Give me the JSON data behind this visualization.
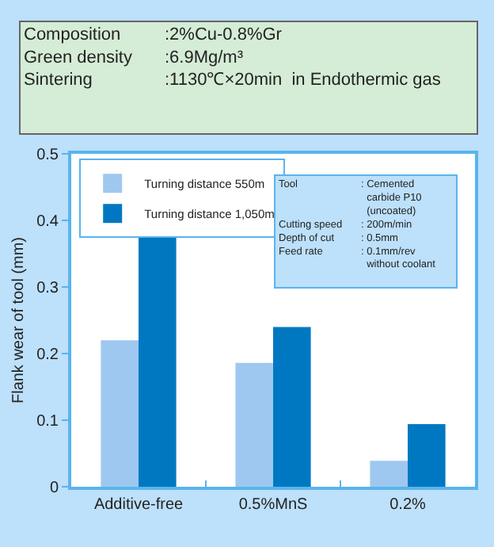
{
  "chart_data": {
    "type": "bar",
    "ylabel": "Flank wear of tool (mm)",
    "categories": [
      "Additive-free",
      "0.5%MnS",
      "0.2%"
    ],
    "series": [
      {
        "name": "Turning distance 550m",
        "color": "#9ec8f0",
        "values": [
          0.22,
          0.186,
          0.039
        ]
      },
      {
        "name": "Turning distance 1,050m",
        "color": "#0078c1",
        "values": [
          0.38,
          0.24,
          0.094
        ]
      }
    ],
    "ylim": [
      0,
      0.5
    ],
    "yticks": [
      0,
      0.1,
      0.2,
      0.3,
      0.4,
      0.5
    ],
    "legend": "top left",
    "annotations": [
      "Composition\nGreen density\nSintering",
      ":2%Cu-0.8%Gr\n:6.9Mg/m³\n:1130℃×20min  in Endothermic gas",
      "Tool\n\n\nCutting speed\nDepth of cut\nFeed rate",
      ": Cemented\n  carbide P10\n  (uncoated)\n: 200m/min\n: 0.5mm\n: 0.1mm/rev\n  without coolant"
    ]
  }
}
